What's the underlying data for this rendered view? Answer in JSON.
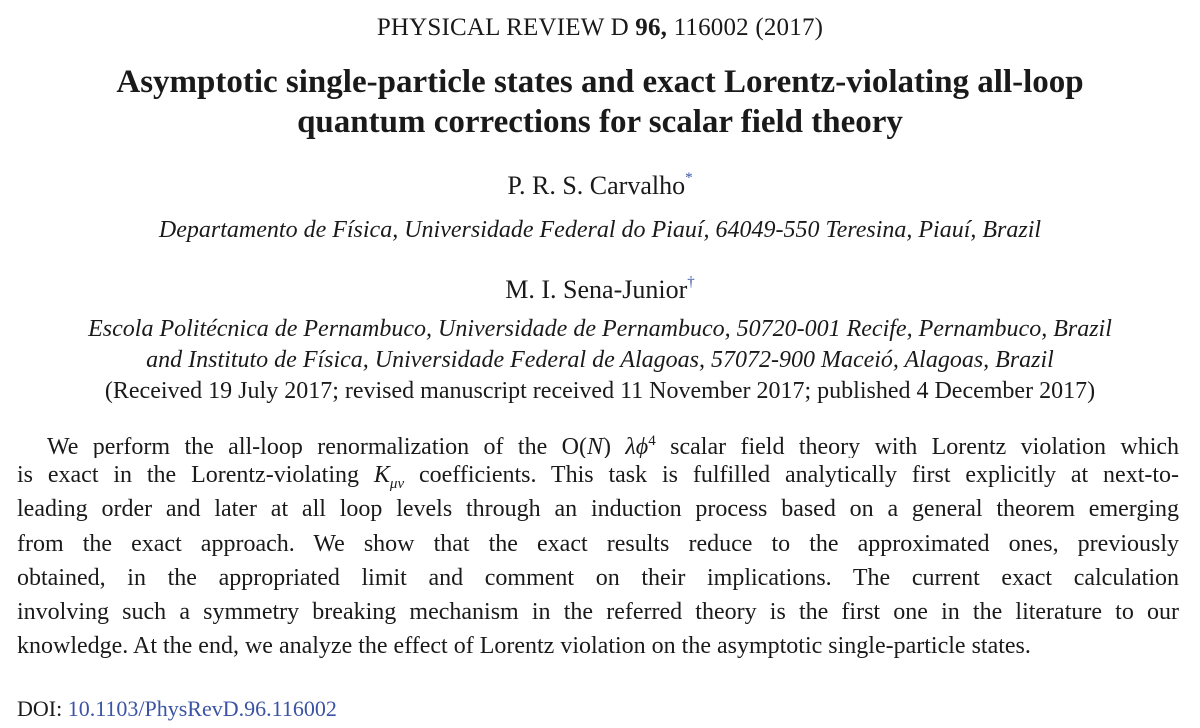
{
  "journal": {
    "name": "PHYSICAL REVIEW D",
    "volume": "96,",
    "article": "116002 (2017)"
  },
  "title": {
    "line1": "Asymptotic single-particle states and exact Lorentz-violating all-loop",
    "line2": "quantum corrections for scalar field theory"
  },
  "authors": [
    {
      "name": "P. R. S. Carvalho",
      "mark": "*",
      "affiliation_lines": [
        "Departamento de Física, Universidade Federal do Piauí, 64049-550 Teresina, Piauí, Brazil"
      ]
    },
    {
      "name": "M. I. Sena-Junior",
      "mark": "†",
      "affiliation_lines": [
        "Escola Politécnica de Pernambuco, Universidade de Pernambuco, 50720-001 Recife, Pernambuco, Brazil",
        "and Instituto de Física, Universidade Federal de Alagoas, 57072-900 Maceió, Alagoas, Brazil"
      ]
    }
  ],
  "received": "(Received 19 July 2017; revised manuscript received 11 November 2017; published 4 December 2017)",
  "abstract": {
    "l1_a": "We perform the all-loop renormalization of the O(",
    "l1_N": "N",
    "l1_b": ")",
    "l1_sym": "λϕ",
    "l1_exp": "4",
    "l1_c": "scalar field theory with Lorentz violation which",
    "l2_a": "is exact in the Lorentz-violating",
    "l2_K": "K",
    "l2_sub": "μν",
    "l2_b": "coefficients. This task is fulfilled analytically first explicitly at next-to-",
    "l3": "leading order and later at all loop levels through an induction process based on a general theorem emerging",
    "l4": "from the exact approach. We show that the exact results reduce to the approximated ones, previously",
    "l5": "obtained, in the appropriated limit and comment on their implications. The current exact calculation",
    "l6": "involving such a symmetry breaking mechanism in the referred theory is the first one in the literature to our",
    "l7": "knowledge. At the end, we analyze the effect of Lorentz violation on the asymptotic single-particle states."
  },
  "doi": {
    "label": "DOI:",
    "value": "10.1103/PhysRevD.96.116002"
  },
  "colors": {
    "link": "#3a53a4",
    "text": "#1a1a1a"
  }
}
